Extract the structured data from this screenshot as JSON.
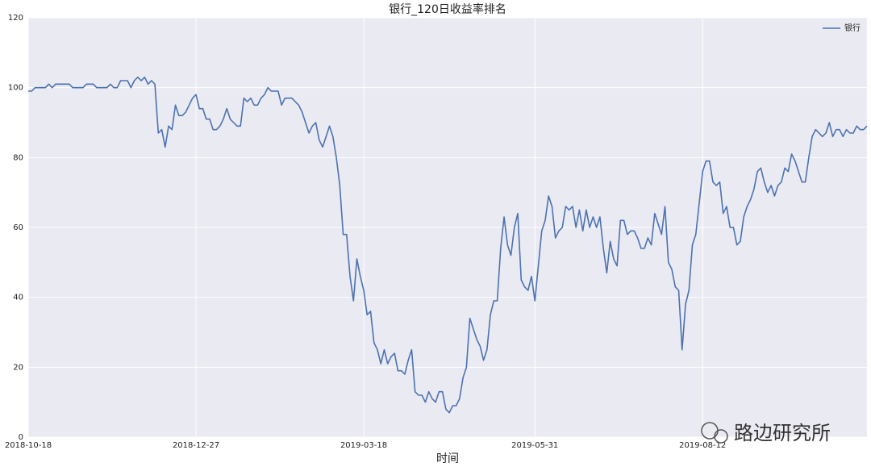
{
  "chart_data": {
    "type": "line",
    "title": "银行_120日收益率排名",
    "xlabel": "时间",
    "watermark": "路边研究所",
    "legend": "upper right",
    "grid": true,
    "ylim": [
      0,
      120
    ],
    "yticks": [
      0,
      20,
      40,
      60,
      80,
      100,
      120
    ],
    "categories": [
      "2018-10-18",
      null,
      null,
      null,
      null,
      null,
      null,
      null,
      null,
      null,
      null,
      null,
      null,
      null,
      null,
      null,
      null,
      null,
      null,
      null,
      null,
      null,
      null,
      null,
      null,
      null,
      null,
      null,
      null,
      null,
      null,
      null,
      null,
      null,
      null,
      null,
      null,
      null,
      null,
      null,
      null,
      null,
      null,
      null,
      null,
      null,
      null,
      null,
      null,
      "2018-12-27",
      null,
      null,
      null,
      null,
      null,
      null,
      null,
      null,
      null,
      null,
      null,
      null,
      null,
      null,
      null,
      null,
      null,
      null,
      null,
      null,
      null,
      null,
      null,
      null,
      null,
      null,
      null,
      null,
      null,
      null,
      null,
      null,
      null,
      null,
      null,
      null,
      null,
      null,
      null,
      null,
      null,
      null,
      null,
      null,
      null,
      null,
      null,
      null,
      "2019-03-18",
      null,
      null,
      null,
      null,
      null,
      null,
      null,
      null,
      null,
      null,
      null,
      null,
      null,
      null,
      null,
      null,
      null,
      null,
      null,
      null,
      null,
      null,
      null,
      null,
      null,
      null,
      null,
      null,
      null,
      null,
      null,
      null,
      null,
      null,
      null,
      null,
      null,
      null,
      null,
      null,
      null,
      null,
      null,
      null,
      null,
      null,
      null,
      null,
      null,
      "2019-05-31",
      null,
      null,
      null,
      null,
      null,
      null,
      null,
      null,
      null,
      null,
      null,
      null,
      null,
      null,
      null,
      null,
      null,
      null,
      null,
      null,
      null,
      null,
      null,
      null,
      null,
      null,
      null,
      null,
      null,
      null,
      null,
      null,
      null,
      null,
      null,
      null,
      null,
      null,
      null,
      null,
      null,
      null,
      null,
      null,
      null,
      null,
      null,
      null,
      "2019-08-12",
      null,
      null,
      null,
      null,
      null,
      null,
      null,
      null,
      null,
      null,
      null,
      null,
      null,
      null,
      null,
      null,
      null,
      null,
      null,
      null,
      null,
      null,
      null,
      null,
      null,
      null,
      null,
      null,
      null,
      null,
      null,
      null,
      null,
      null,
      null,
      null,
      null,
      null,
      null,
      null,
      null,
      null,
      null,
      null,
      null,
      null,
      null,
      null
    ],
    "series": [
      {
        "name": "银行",
        "color": "#4c72b0",
        "values": [
          99,
          99,
          100,
          100,
          100,
          100,
          101,
          100,
          101,
          101,
          101,
          101,
          101,
          100,
          100,
          100,
          100,
          101,
          101,
          101,
          100,
          100,
          100,
          100,
          101,
          100,
          100,
          102,
          102,
          102,
          100,
          102,
          103,
          102,
          103,
          101,
          102,
          101,
          87,
          88,
          83,
          89,
          88,
          95,
          92,
          92,
          93,
          95,
          97,
          98,
          94,
          94,
          91,
          91,
          88,
          88,
          89,
          91,
          94,
          91,
          90,
          89,
          89,
          97,
          96,
          97,
          95,
          95,
          97,
          98,
          100,
          99,
          99,
          99,
          95,
          97,
          97,
          97,
          96,
          95,
          93,
          90,
          87,
          89,
          90,
          85,
          83,
          86,
          89,
          86,
          80,
          72,
          58,
          58,
          46,
          39,
          51,
          46,
          42,
          35,
          36,
          27,
          25,
          21,
          25,
          21,
          23,
          24,
          19,
          19,
          18,
          22,
          25,
          13,
          12,
          12,
          10,
          13,
          11,
          10,
          13,
          13,
          8,
          7,
          9,
          9,
          11,
          17,
          20,
          34,
          31,
          28,
          26,
          22,
          25,
          35,
          39,
          39,
          54,
          63,
          55,
          52,
          60,
          64,
          45,
          43,
          42,
          46,
          39,
          49,
          59,
          62,
          69,
          66,
          57,
          59,
          60,
          66,
          65,
          66,
          60,
          65,
          59,
          65,
          60,
          63,
          60,
          63,
          54,
          47,
          56,
          51,
          49,
          62,
          62,
          58,
          59,
          59,
          57,
          54,
          54,
          57,
          55,
          64,
          61,
          58,
          66,
          50,
          48,
          43,
          42,
          25,
          38,
          42,
          55,
          58,
          67,
          76,
          79,
          79,
          73,
          72,
          73,
          64,
          66,
          60,
          60,
          55,
          56,
          63,
          66,
          68,
          71,
          76,
          77,
          73,
          70,
          72,
          69,
          72,
          73,
          77,
          76,
          81,
          79,
          76,
          73,
          73,
          80,
          86,
          88,
          87,
          86,
          87,
          90,
          86,
          88,
          88,
          86,
          88,
          87,
          87,
          89,
          88,
          88,
          89
        ]
      }
    ]
  }
}
